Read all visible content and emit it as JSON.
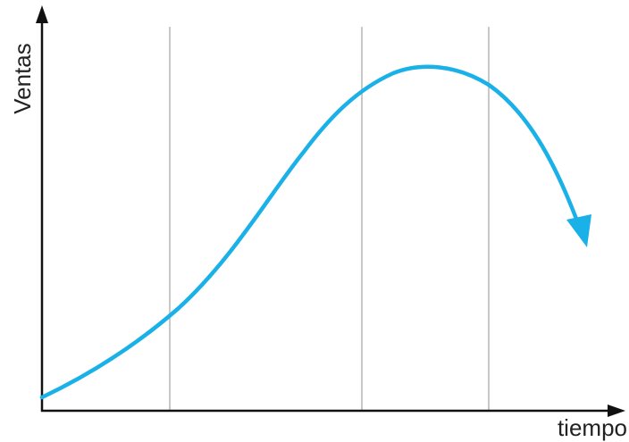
{
  "axes": {
    "y_label": "Ventas",
    "x_label": "tiempo"
  }
}
